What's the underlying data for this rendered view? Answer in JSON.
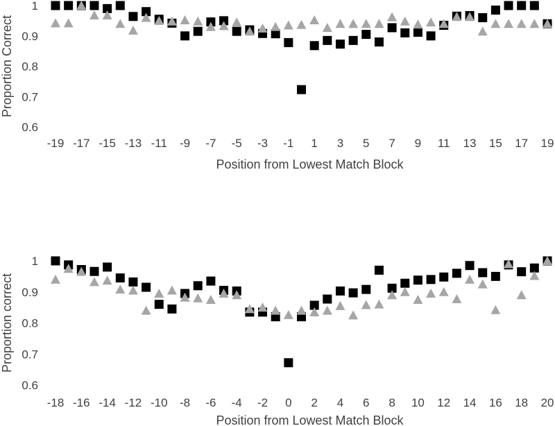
{
  "chart_data": [
    {
      "type": "scatter",
      "xlabel": "Position from Lowest Match Block",
      "ylabel": "Proportion Correct",
      "xlim": [
        -19,
        19
      ],
      "ylim": [
        0.6,
        1
      ],
      "x_ticks": [
        -19,
        -17,
        -15,
        -13,
        -11,
        -9,
        -7,
        -5,
        -3,
        -1,
        1,
        3,
        5,
        7,
        9,
        11,
        13,
        15,
        17,
        19
      ],
      "y_ticks": [
        0.6,
        0.7,
        0.8,
        0.9,
        1
      ],
      "y_tick_labels": [
        "0.6",
        "0.7",
        "0.8",
        "0.9",
        "1"
      ],
      "grid": false,
      "legend": "none",
      "series": [
        {
          "marker": "square",
          "color": "#000000",
          "x": [
            -19,
            -18,
            -17,
            -16,
            -15,
            -14,
            -13,
            -12,
            -11,
            -10,
            -9,
            -8,
            -7,
            -6,
            -5,
            -4,
            -3,
            -2,
            -1,
            0,
            1,
            2,
            3,
            4,
            5,
            6,
            7,
            8,
            9,
            10,
            11,
            12,
            13,
            14,
            15,
            16,
            17,
            18,
            19
          ],
          "y": [
            1.0,
            1.0,
            1.0,
            1.0,
            0.99,
            1.0,
            0.964,
            0.98,
            0.955,
            0.942,
            0.9,
            0.915,
            0.946,
            0.95,
            0.915,
            0.92,
            0.908,
            0.907,
            0.878,
            0.723,
            0.868,
            0.885,
            0.873,
            0.885,
            0.905,
            0.88,
            0.927,
            0.91,
            0.912,
            0.9,
            0.935,
            0.965,
            0.967,
            0.96,
            0.985,
            1.0,
            1.0,
            1.0,
            0.94
          ]
        },
        {
          "marker": "triangle",
          "color": "#a6a6a6",
          "x": [
            -19,
            -18,
            -17,
            -16,
            -15,
            -14,
            -13,
            -12,
            -11,
            -10,
            -9,
            -8,
            -7,
            -6,
            -5,
            -4,
            -3,
            -2,
            -1,
            0,
            1,
            2,
            3,
            4,
            5,
            6,
            7,
            8,
            9,
            10,
            11,
            12,
            13,
            14,
            15,
            16,
            17,
            18,
            19
          ],
          "y": [
            0.942,
            0.942,
            1.0,
            0.968,
            0.968,
            0.94,
            0.918,
            0.96,
            0.95,
            0.948,
            0.952,
            0.948,
            0.93,
            0.933,
            0.945,
            0.915,
            0.925,
            0.93,
            0.935,
            0.937,
            0.952,
            0.927,
            0.94,
            0.94,
            0.94,
            0.94,
            0.962,
            0.948,
            0.938,
            0.945,
            0.94,
            0.963,
            0.963,
            0.915,
            0.94,
            0.94,
            0.94,
            0.94,
            0.94
          ]
        }
      ]
    },
    {
      "type": "scatter",
      "xlabel": "Position from Lowest Match Block",
      "ylabel": "Proportion correct",
      "xlim": [
        -18,
        20
      ],
      "ylim": [
        0.6,
        1
      ],
      "x_ticks": [
        -18,
        -16,
        -14,
        -12,
        -10,
        -8,
        -6,
        -4,
        -2,
        0,
        2,
        4,
        6,
        8,
        10,
        12,
        14,
        16,
        18,
        20
      ],
      "y_ticks": [
        0.6,
        0.7,
        0.8,
        0.9,
        1
      ],
      "y_tick_labels": [
        "0.6",
        "0.7",
        "0.8",
        "0.9",
        "1"
      ],
      "grid": false,
      "legend": "none",
      "series": [
        {
          "marker": "square",
          "color": "#000000",
          "x": [
            -18,
            -17,
            -16,
            -15,
            -14,
            -13,
            -12,
            -11,
            -10,
            -9,
            -8,
            -7,
            -6,
            -5,
            -4,
            -3,
            -2,
            -1,
            0,
            1,
            2,
            3,
            4,
            5,
            6,
            7,
            8,
            9,
            10,
            11,
            12,
            13,
            14,
            15,
            16,
            17,
            18,
            19,
            20
          ],
          "y": [
            1.0,
            0.987,
            0.972,
            0.966,
            0.98,
            0.945,
            0.932,
            0.915,
            0.86,
            0.845,
            0.895,
            0.92,
            0.935,
            0.905,
            0.903,
            0.835,
            0.835,
            0.82,
            0.672,
            0.82,
            0.857,
            0.877,
            0.903,
            0.897,
            0.908,
            0.97,
            0.912,
            0.928,
            0.938,
            0.94,
            0.948,
            0.96,
            0.985,
            0.962,
            0.95,
            0.987,
            0.965,
            0.977,
            1.0
          ]
        },
        {
          "marker": "triangle",
          "color": "#a6a6a6",
          "x": [
            -18,
            -17,
            -16,
            -15,
            -14,
            -13,
            -12,
            -11,
            -10,
            -9,
            -8,
            -7,
            -6,
            -5,
            -4,
            -3,
            -2,
            -1,
            0,
            1,
            2,
            3,
            4,
            5,
            6,
            7,
            8,
            9,
            10,
            11,
            12,
            13,
            14,
            15,
            16,
            17,
            18,
            19,
            20
          ],
          "y": [
            0.94,
            0.975,
            0.965,
            0.932,
            0.937,
            0.908,
            0.905,
            0.84,
            0.895,
            0.905,
            0.882,
            0.88,
            0.875,
            0.895,
            0.89,
            0.845,
            0.85,
            0.84,
            0.826,
            0.84,
            0.835,
            0.84,
            0.855,
            0.825,
            0.858,
            0.86,
            0.89,
            0.9,
            0.875,
            0.895,
            0.9,
            0.877,
            0.94,
            0.925,
            0.842,
            0.99,
            0.89,
            0.952,
            1.0
          ]
        }
      ]
    }
  ]
}
